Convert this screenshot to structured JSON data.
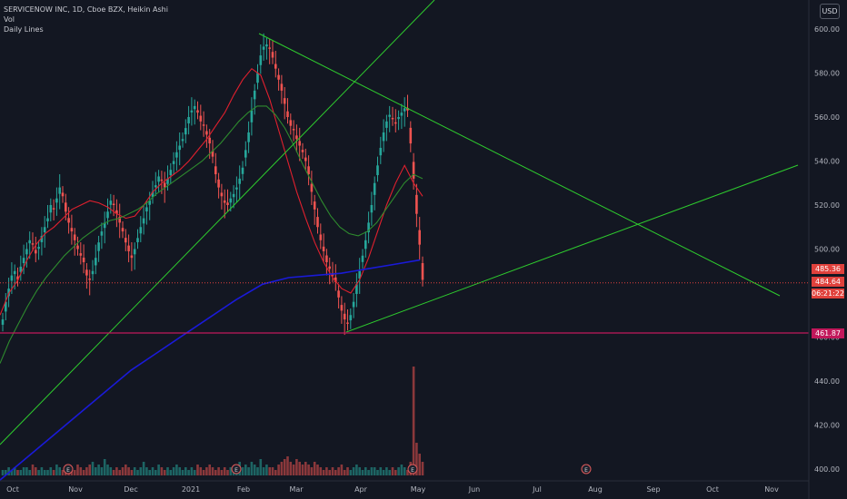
{
  "legend": {
    "symbol_line": "SERVICENOW INC, 1D, Cboe BZX, Heikin Ashi",
    "vol_label": "Vol",
    "daily_lines_label": "Daily Lines"
  },
  "currency_label": "USD",
  "price_tags": {
    "upper": "485.36",
    "current": "484.64",
    "countdown": "06:21:22",
    "support": "461.87"
  },
  "chart_data": {
    "type": "candlestick",
    "title": "SERVICENOW INC, 1D, Cboe BZX, Heikin Ashi",
    "x_tick_labels": [
      "Oct",
      "Nov",
      "Dec",
      "2021",
      "Feb",
      "Mar",
      "Apr",
      "May",
      "Jun",
      "Jul",
      "Aug",
      "Sep",
      "Oct",
      "Nov"
    ],
    "y_tick_labels": [
      "600.00",
      "580.00",
      "560.00",
      "540.00",
      "520.00",
      "500.00",
      "480.00",
      "460.00",
      "440.00",
      "420.00",
      "400.00"
    ],
    "ylim": [
      400,
      610
    ],
    "grid": false,
    "candle_closes": [
      468,
      476,
      482,
      488,
      490,
      486,
      492,
      496,
      500,
      504,
      502,
      498,
      501,
      506,
      510,
      514,
      520,
      518,
      523,
      528,
      524,
      517,
      512,
      508,
      504,
      500,
      497,
      494,
      488,
      486,
      490,
      496,
      503,
      508,
      512,
      517,
      522,
      520,
      516,
      512,
      508,
      503,
      499,
      496,
      500,
      505,
      510,
      514,
      519,
      522,
      526,
      529,
      533,
      531,
      528,
      532,
      536,
      540,
      544,
      547,
      550,
      555,
      560,
      563,
      565,
      562,
      558,
      556,
      552,
      548,
      542,
      534,
      528,
      524,
      521,
      520,
      523,
      525,
      528,
      532,
      537,
      545,
      553,
      563,
      572,
      580,
      588,
      592,
      593,
      591,
      587,
      582,
      577,
      572,
      566,
      560,
      556,
      554,
      550,
      547,
      544,
      540,
      534,
      526,
      518,
      510,
      504,
      499,
      494,
      491,
      488,
      485,
      478,
      472,
      468,
      466,
      470,
      476,
      484,
      490,
      497,
      504,
      512,
      520,
      530,
      538,
      546,
      553,
      558,
      561,
      559,
      557,
      560,
      562,
      564,
      563,
      548,
      532,
      516,
      502,
      486
    ],
    "series": [
      {
        "name": "EMA fast",
        "color": "#e0202e",
        "values": [
          470,
          480,
          486,
          495,
          502,
          507,
          510,
          514,
          518,
          520,
          522,
          521,
          519,
          516,
          514,
          515,
          520,
          526,
          530,
          533,
          536,
          540,
          545,
          550,
          556,
          562,
          570,
          577,
          582,
          579,
          568,
          554,
          540,
          526,
          514,
          503,
          494,
          487,
          482,
          480,
          486,
          496,
          508,
          520,
          530,
          538,
          530,
          524
        ]
      },
      {
        "name": "EMA slow",
        "color": "#2e8b2e",
        "values": [
          448,
          458,
          466,
          474,
          481,
          487,
          492,
          497,
          501,
          505,
          508,
          511,
          513,
          514,
          516,
          518,
          521,
          525,
          528,
          531,
          534,
          537,
          540,
          544,
          548,
          553,
          558,
          562,
          565,
          565,
          561,
          555,
          547,
          538,
          530,
          522,
          515,
          510,
          507,
          506,
          508,
          512,
          518,
          524,
          530,
          534,
          532
        ]
      },
      {
        "name": "MA long",
        "color": "#1a1ad8",
        "values": [
          395,
          405,
          415,
          425,
          435,
          445,
          453,
          461,
          469,
          477,
          484,
          487,
          488,
          489,
          491,
          493,
          495
        ]
      }
    ],
    "horizontal_lines": [
      {
        "price": 484.64,
        "style": "dotted",
        "color": "#e0413c"
      },
      {
        "price": 461.87,
        "style": "solid",
        "color": "#c2185b"
      }
    ],
    "volume_heights": [
      2,
      2,
      3,
      2,
      3,
      2,
      2,
      3,
      3,
      2,
      4,
      3,
      2,
      3,
      2,
      2,
      3,
      2,
      4,
      3,
      2,
      2,
      3,
      3,
      2,
      4,
      3,
      2,
      3,
      4,
      5,
      3,
      4,
      3,
      6,
      4,
      3,
      2,
      3,
      2,
      3,
      4,
      3,
      2,
      3,
      2,
      3,
      5,
      3,
      2,
      3,
      2,
      4,
      3,
      2,
      3,
      2,
      3,
      4,
      3,
      2,
      3,
      2,
      3,
      2,
      4,
      3,
      2,
      3,
      4,
      3,
      2,
      3,
      2,
      3,
      2,
      3,
      2,
      4,
      5,
      3,
      4,
      3,
      5,
      4,
      3,
      6,
      3,
      4,
      3,
      3,
      2,
      4,
      5,
      6,
      7,
      5,
      4,
      6,
      5,
      4,
      5,
      4,
      3,
      5,
      4,
      3,
      2,
      3,
      2,
      3,
      2,
      3,
      4,
      2,
      3,
      2,
      3,
      4,
      3,
      2,
      3,
      2,
      3,
      3,
      2,
      3,
      2,
      3,
      2,
      3,
      2,
      3,
      4,
      3,
      2,
      5,
      40,
      12,
      8,
      5
    ],
    "event_markers": [
      "E",
      "E",
      "E",
      "E"
    ]
  }
}
